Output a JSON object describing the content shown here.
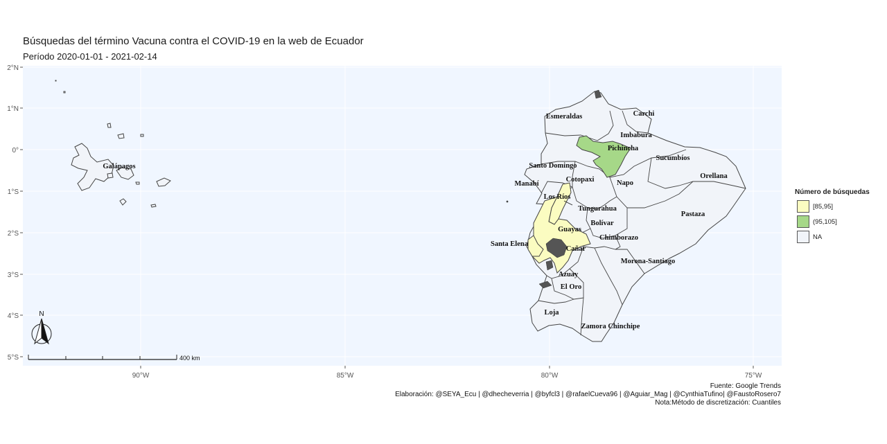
{
  "title": "Búsquedas del término Vacuna contra el COVID-19 en la web de Ecuador",
  "subtitle": "Período 2020-01-01 - 2021-02-14",
  "colors": {
    "panel": "#f0f6ff",
    "low": "#fbfcc1",
    "high": "#a6d888",
    "na": "#f1f4f9",
    "border": "#555555"
  },
  "y_axis": [
    "2°N",
    "1°N",
    "0°",
    "1°S",
    "2°S",
    "3°S",
    "4°S",
    "5°S"
  ],
  "x_axis": [
    "90°W",
    "85°W",
    "80°W",
    "75°W"
  ],
  "provinces": [
    "Esmeraldas",
    "Carchi",
    "Imbabura",
    "Pichincha",
    "Sucumbíos",
    "Santo Domingo",
    "Galápagos",
    "Orellana",
    "Manabí",
    "Cotopaxi",
    "Napo",
    "Los Ríos",
    "Tungurahua",
    "Pastaza",
    "Bolívar",
    "Guayas",
    "Santa Elena",
    "Chimborazo",
    "Cañar",
    "Morona-Santiago",
    "Azuay",
    "El Oro",
    "Loja",
    "Zamora Chinchipe"
  ],
  "legend": {
    "title": "Número de búsquedas",
    "items": [
      "[85,95]",
      "(95,105]",
      "NA"
    ]
  },
  "scalebar": {
    "label": "400 km"
  },
  "north": "N",
  "caption": {
    "line1": "Fuente: Google Trends",
    "line2": "Elaboración: @SEYA_Ecu | @dhecheverria | @byfcl3 | @rafaelCueva96 | @Aguiar_Mag | @CynthiaTufino| @FaustoRosero7",
    "line3": "Nota:Método de discretización: Cuantiles"
  }
}
